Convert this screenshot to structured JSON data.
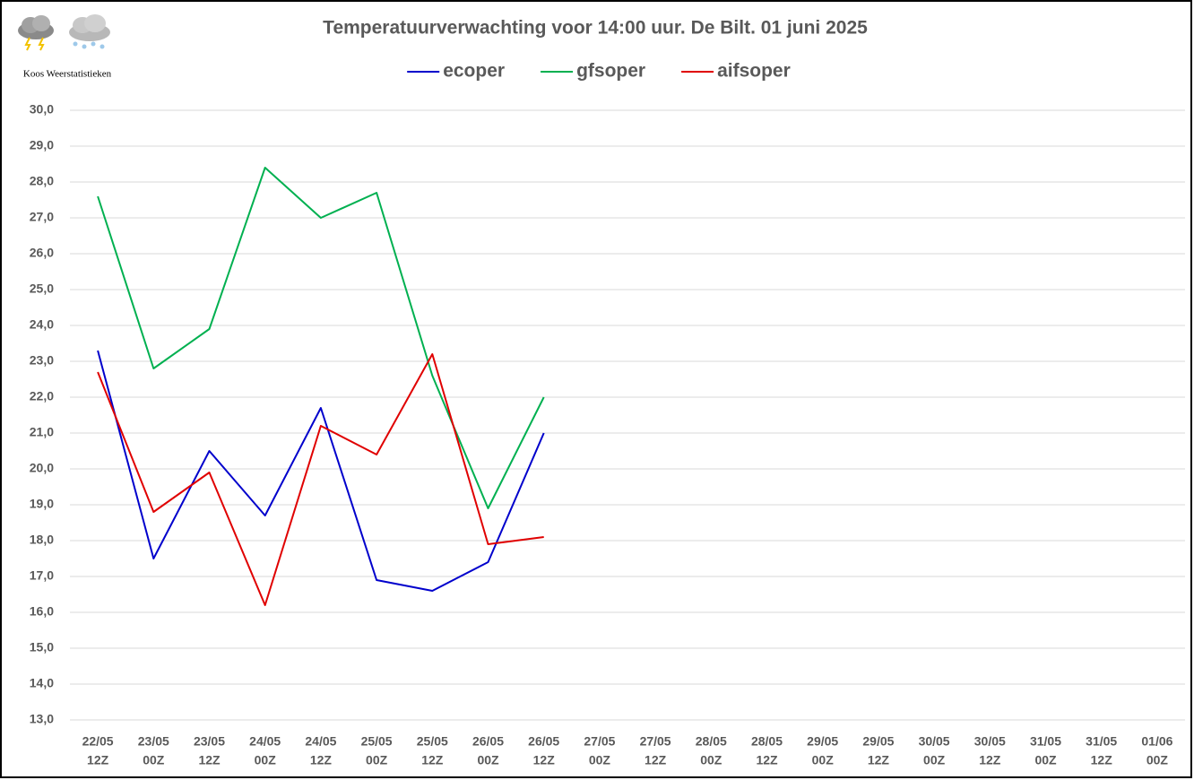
{
  "logo_text": "Koos Weerstatistieken",
  "chart_data": {
    "type": "line",
    "title": "Temperatuurverwachting voor 14:00 uur. De Bilt. 01 juni 2025",
    "categories": [
      [
        "22/05",
        "12Z"
      ],
      [
        "23/05",
        "00Z"
      ],
      [
        "23/05",
        "12Z"
      ],
      [
        "24/05",
        "00Z"
      ],
      [
        "24/05",
        "12Z"
      ],
      [
        "25/05",
        "00Z"
      ],
      [
        "25/05",
        "12Z"
      ],
      [
        "26/05",
        "00Z"
      ],
      [
        "26/05",
        "12Z"
      ],
      [
        "27/05",
        "00Z"
      ],
      [
        "27/05",
        "12Z"
      ],
      [
        "28/05",
        "00Z"
      ],
      [
        "28/05",
        "12Z"
      ],
      [
        "29/05",
        "00Z"
      ],
      [
        "29/05",
        "12Z"
      ],
      [
        "30/05",
        "00Z"
      ],
      [
        "30/05",
        "12Z"
      ],
      [
        "31/05",
        "00Z"
      ],
      [
        "31/05",
        "12Z"
      ],
      [
        "01/06",
        "00Z"
      ]
    ],
    "series": [
      {
        "name": "ecoper",
        "color": "#0000cc",
        "values": [
          23.3,
          17.5,
          20.5,
          18.7,
          21.7,
          16.9,
          16.6,
          17.4,
          21.0,
          null,
          null,
          null,
          null,
          null,
          null,
          null,
          null,
          null,
          null,
          null
        ]
      },
      {
        "name": "gfsoper",
        "color": "#00b050",
        "values": [
          27.6,
          22.8,
          23.9,
          28.4,
          27.0,
          27.7,
          22.6,
          18.9,
          22.0,
          null,
          null,
          null,
          null,
          null,
          null,
          null,
          null,
          null,
          null,
          null
        ]
      },
      {
        "name": "aifsoper",
        "color": "#e00000",
        "values": [
          22.7,
          18.8,
          19.9,
          16.2,
          21.2,
          20.4,
          23.2,
          17.9,
          18.1,
          null,
          null,
          null,
          null,
          null,
          null,
          null,
          null,
          null,
          null,
          null
        ]
      }
    ],
    "ylim": [
      13,
      30
    ],
    "yticks": [
      {
        "value": 13,
        "label": "13,0"
      },
      {
        "value": 14,
        "label": "14,0"
      },
      {
        "value": 15,
        "label": "15,0"
      },
      {
        "value": 16,
        "label": "16,0"
      },
      {
        "value": 17,
        "label": "17,0"
      },
      {
        "value": 18,
        "label": "18,0"
      },
      {
        "value": 19,
        "label": "19,0"
      },
      {
        "value": 20,
        "label": "20,0"
      },
      {
        "value": 21,
        "label": "21,0"
      },
      {
        "value": 22,
        "label": "22,0"
      },
      {
        "value": 23,
        "label": "23,0"
      },
      {
        "value": 24,
        "label": "24,0"
      },
      {
        "value": 25,
        "label": "25,0"
      },
      {
        "value": 26,
        "label": "26,0"
      },
      {
        "value": 27,
        "label": "27,0"
      },
      {
        "value": 28,
        "label": "28,0"
      },
      {
        "value": 29,
        "label": "29,0"
      },
      {
        "value": 30,
        "label": "30,0"
      }
    ],
    "grid": true,
    "legend": "top"
  }
}
